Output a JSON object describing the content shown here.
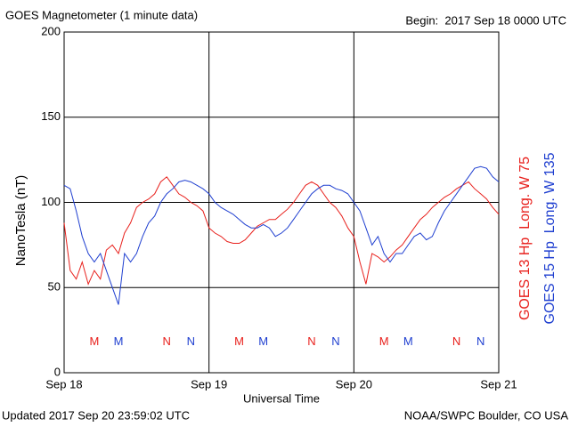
{
  "chart_data": {
    "type": "line",
    "title": "GOES Magnetometer (1 minute data)",
    "subtitle": "Begin:  2017 Sep 18 0000 UTC",
    "ylabel": "NanoTesla (nT)",
    "xlabel": "Universal Time",
    "footer_left": "Updated 2017 Sep 20 23:59:02 UTC",
    "footer_right": "NOAA/SWPC Boulder, CO USA",
    "grid": true,
    "legend": "right",
    "xlim": [
      0,
      72
    ],
    "xticks": [
      {
        "value": 0,
        "label": "Sep 18"
      },
      {
        "value": 24,
        "label": "Sep 19"
      },
      {
        "value": 48,
        "label": "Sep 20"
      },
      {
        "value": 72,
        "label": "Sep 21"
      }
    ],
    "ylim": [
      0,
      200
    ],
    "yticks": [
      0,
      50,
      100,
      150,
      200
    ],
    "x": [
      0,
      1,
      2,
      3,
      4,
      5,
      6,
      7,
      8,
      9,
      10,
      11,
      12,
      13,
      14,
      15,
      16,
      17,
      18,
      19,
      20,
      21,
      22,
      23,
      24,
      25,
      26,
      27,
      28,
      29,
      30,
      31,
      32,
      33,
      34,
      35,
      36,
      37,
      38,
      39,
      40,
      41,
      42,
      43,
      44,
      45,
      46,
      47,
      48,
      49,
      50,
      51,
      52,
      53,
      54,
      55,
      56,
      57,
      58,
      59,
      60,
      61,
      62,
      63,
      64,
      65,
      66,
      67,
      68,
      69,
      70,
      71,
      72
    ],
    "series": [
      {
        "name": "GOES 13 Hp  Long. W 75",
        "color": "#e8201c",
        "values": [
          88,
          60,
          55,
          65,
          52,
          60,
          55,
          72,
          75,
          70,
          82,
          88,
          97,
          100,
          102,
          105,
          112,
          115,
          110,
          105,
          103,
          100,
          98,
          95,
          85,
          82,
          80,
          77,
          76,
          76,
          78,
          82,
          86,
          88,
          90,
          90,
          93,
          96,
          100,
          105,
          110,
          112,
          110,
          105,
          100,
          97,
          92,
          85,
          80,
          65,
          52,
          70,
          68,
          65,
          68,
          72,
          75,
          80,
          85,
          90,
          93,
          97,
          100,
          103,
          105,
          108,
          110,
          112,
          108,
          105,
          102,
          97,
          93
        ]
      },
      {
        "name": "GOES 15 Hp  Long. W 135",
        "color": "#1f3fd0",
        "values": [
          110,
          108,
          95,
          80,
          70,
          65,
          70,
          60,
          50,
          40,
          70,
          65,
          70,
          80,
          88,
          92,
          100,
          105,
          108,
          112,
          113,
          112,
          110,
          108,
          105,
          100,
          97,
          95,
          93,
          90,
          87,
          85,
          85,
          87,
          85,
          80,
          82,
          85,
          90,
          95,
          100,
          105,
          108,
          110,
          110,
          108,
          107,
          105,
          100,
          95,
          85,
          75,
          80,
          70,
          65,
          70,
          70,
          75,
          80,
          82,
          78,
          80,
          88,
          95,
          100,
          105,
          110,
          115,
          120,
          121,
          120,
          115,
          112
        ]
      }
    ],
    "annotations": [
      {
        "text": "M",
        "x": 5,
        "y": 18,
        "color": "#e8201c"
      },
      {
        "text": "M",
        "x": 9,
        "y": 18,
        "color": "#1f3fd0"
      },
      {
        "text": "N",
        "x": 17,
        "y": 18,
        "color": "#e8201c"
      },
      {
        "text": "N",
        "x": 21,
        "y": 18,
        "color": "#1f3fd0"
      },
      {
        "text": "M",
        "x": 29,
        "y": 18,
        "color": "#e8201c"
      },
      {
        "text": "M",
        "x": 33,
        "y": 18,
        "color": "#1f3fd0"
      },
      {
        "text": "N",
        "x": 41,
        "y": 18,
        "color": "#e8201c"
      },
      {
        "text": "N",
        "x": 45,
        "y": 18,
        "color": "#1f3fd0"
      },
      {
        "text": "M",
        "x": 53,
        "y": 18,
        "color": "#e8201c"
      },
      {
        "text": "M",
        "x": 57,
        "y": 18,
        "color": "#1f3fd0"
      },
      {
        "text": "N",
        "x": 65,
        "y": 18,
        "color": "#e8201c"
      },
      {
        "text": "N",
        "x": 69,
        "y": 18,
        "color": "#1f3fd0"
      }
    ]
  }
}
